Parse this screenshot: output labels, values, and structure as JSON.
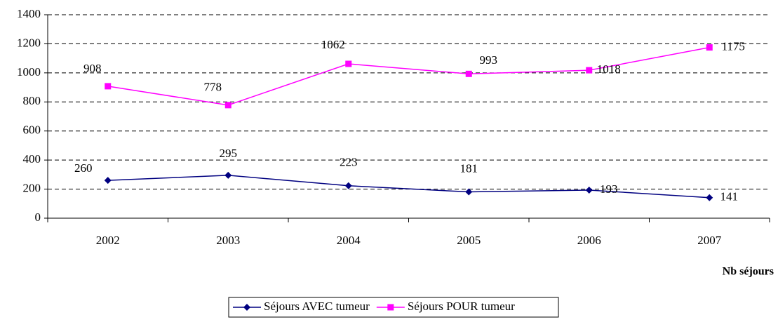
{
  "chart_data": {
    "type": "line",
    "categories": [
      "2002",
      "2003",
      "2004",
      "2005",
      "2006",
      "2007"
    ],
    "series": [
      {
        "name": "Séjours AVEC tumeur",
        "color": "#000080",
        "marker": "diamond",
        "values": [
          260,
          295,
          223,
          181,
          193,
          141
        ]
      },
      {
        "name": "Séjours POUR tumeur",
        "color": "#ff00ff",
        "marker": "square",
        "values": [
          908,
          778,
          1062,
          993,
          1018,
          1175
        ]
      }
    ],
    "x_label": "Nb séjours",
    "ylim": [
      0,
      1400
    ],
    "yticks": [
      0,
      200,
      400,
      600,
      800,
      1000,
      1200,
      1400
    ],
    "grid": true,
    "legend": "bottom"
  }
}
